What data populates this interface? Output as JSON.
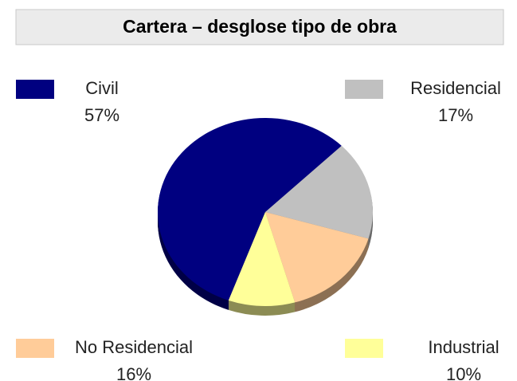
{
  "chart_data": {
    "type": "pie",
    "title": "Cartera – desglose tipo de obra",
    "categories": [
      "Civil",
      "Residencial",
      "No Residencial",
      "Industrial"
    ],
    "values": [
      57,
      17,
      16,
      10
    ],
    "value_labels": [
      "57%",
      "17%",
      "16%",
      "10%"
    ],
    "colors": [
      "#000080",
      "#c0c0c0",
      "#ffcc99",
      "#ffff99"
    ]
  }
}
